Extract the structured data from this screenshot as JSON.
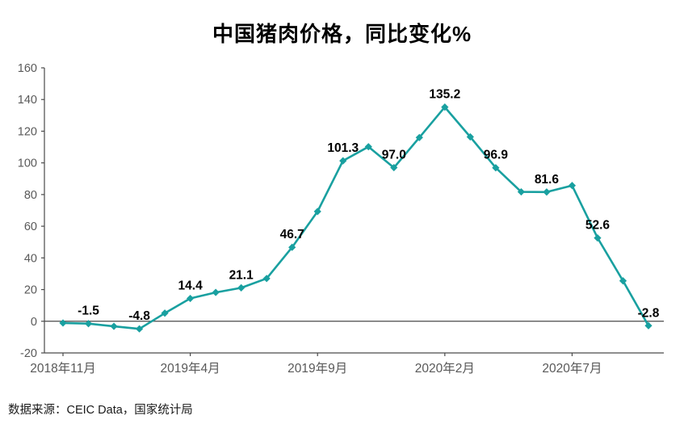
{
  "source_note": "数据来源：CEIC Data，国家统计局",
  "chart_data": {
    "type": "line",
    "title": "中国猪肉价格，同比变化%",
    "values": [
      -1.1,
      -1.5,
      -3.2,
      -4.8,
      5.1,
      14.4,
      18.2,
      21.1,
      27.0,
      46.7,
      69.3,
      101.3,
      110.2,
      97.0,
      116.0,
      135.2,
      116.4,
      96.9,
      81.7,
      81.6,
      85.7,
      52.6,
      25.5,
      -2.8
    ],
    "data_labels": [
      null,
      "-1.5",
      null,
      "-4.8",
      null,
      "14.4",
      null,
      "21.1",
      null,
      "46.7",
      null,
      "101.3",
      null,
      "97.0",
      null,
      "135.2",
      null,
      "96.9",
      null,
      "81.6",
      null,
      "52.6",
      null,
      "-2.8"
    ],
    "x_tick_labels": [
      "2018年11月",
      "2019年4月",
      "2019年9月",
      "2020年2月",
      "2020年7月"
    ],
    "x_tick_indices": [
      0,
      5,
      10,
      15,
      20
    ],
    "y_ticks": [
      -20,
      0,
      20,
      40,
      60,
      80,
      100,
      120,
      140,
      160
    ],
    "ylim": [
      -20,
      160
    ],
    "grid": "off",
    "legend": "none",
    "line_color": "#19a0a0",
    "marker": "diamond",
    "axis_color": "#4a4a4a",
    "tick_label_color": "#595959",
    "value_label_color": "#000000"
  }
}
